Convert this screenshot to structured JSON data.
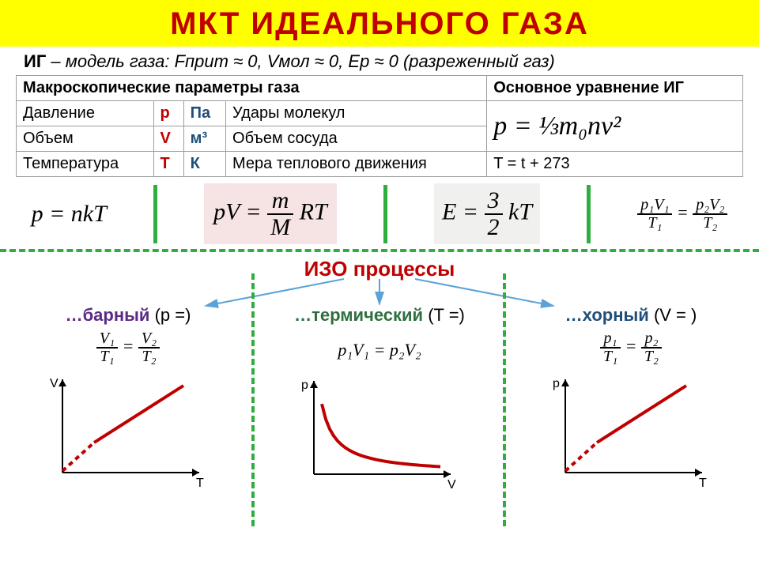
{
  "title": "МКТ  ИДЕАЛЬНОГО  ГАЗА",
  "subtitle_prefix": "ИГ",
  "subtitle_rest": " – модель газа: Fприт ≈ 0,  Vмол ≈ 0,  Еp ≈ 0  (разреженный газ)",
  "table": {
    "head_left": "Макроскопические  параметры  газа",
    "head_right": "Основное уравнение ИГ",
    "rows": [
      {
        "name": "Давление",
        "sym": "p",
        "unit": "Па",
        "desc": "Удары молекул"
      },
      {
        "name": "Объем",
        "sym": "V",
        "unit": "м³",
        "desc": "Объем сосуда"
      },
      {
        "name": "Температура",
        "sym": "T",
        "unit": "К",
        "desc": "Мера теплового движения"
      }
    ],
    "main_eq": "p = ⅓m₀nv²",
    "temp_conv": "T = t + 273"
  },
  "formulas": {
    "f1": "p = nkT",
    "f2_left": "pV",
    "f2_eq": " = ",
    "f2_num": "m",
    "f2_den": "M",
    "f2_right": " RT",
    "f3_left": "E",
    "f3_eq": " = ",
    "f3_num": "3",
    "f3_den": "2",
    "f3_right": " kT",
    "f4_l_num": "p₁V₁",
    "f4_l_den": "T₁",
    "f4_r_num": "p₂V₂",
    "f4_r_den": "T₂"
  },
  "iso_title": "ИЗО процессы",
  "processes": [
    {
      "prefix": "…барный",
      "paren": "(p =)",
      "prefix_color": "#5b2a86",
      "eq": {
        "type": "frac2",
        "l_num": "V₁",
        "l_den": "T₁",
        "r_num": "V₂",
        "r_den": "T₂"
      },
      "chart": {
        "type": "linear-up",
        "x_label": "T",
        "y_label": "V",
        "line_color": "#c00000",
        "line_width": 4,
        "axis_color": "#000000",
        "dash_from": [
          22,
          128
        ],
        "dash_to": [
          62,
          92
        ],
        "solid_from": [
          62,
          92
        ],
        "solid_to": [
          175,
          20
        ]
      }
    },
    {
      "prefix": "…термический",
      "paren": "(T =)",
      "prefix_color": "#2f6f3f",
      "eq": {
        "type": "inline",
        "text": "p₁V₁ = p₂V₂"
      },
      "chart": {
        "type": "hyperbola",
        "x_label": "V",
        "y_label": "p",
        "line_color": "#c00000",
        "line_width": 4,
        "axis_color": "#000000"
      }
    },
    {
      "prefix": "…хорный",
      "paren": "(V = )",
      "prefix_color": "#1f4e79",
      "eq": {
        "type": "frac2",
        "l_num": "p₁",
        "l_den": "T₁",
        "r_num": "p₂",
        "r_den": "T₂"
      },
      "chart": {
        "type": "linear-up",
        "x_label": "T",
        "y_label": "p",
        "line_color": "#c00000",
        "line_width": 4,
        "axis_color": "#000000",
        "dash_from": [
          22,
          128
        ],
        "dash_to": [
          62,
          92
        ],
        "solid_from": [
          62,
          92
        ],
        "solid_to": [
          175,
          20
        ]
      }
    }
  ],
  "colors": {
    "accent_red": "#c00000",
    "accent_green": "#2eae3e",
    "title_bg": "#ffff00",
    "unit_blue": "#1f4e79",
    "arrow_blue": "#5aa2d8"
  }
}
